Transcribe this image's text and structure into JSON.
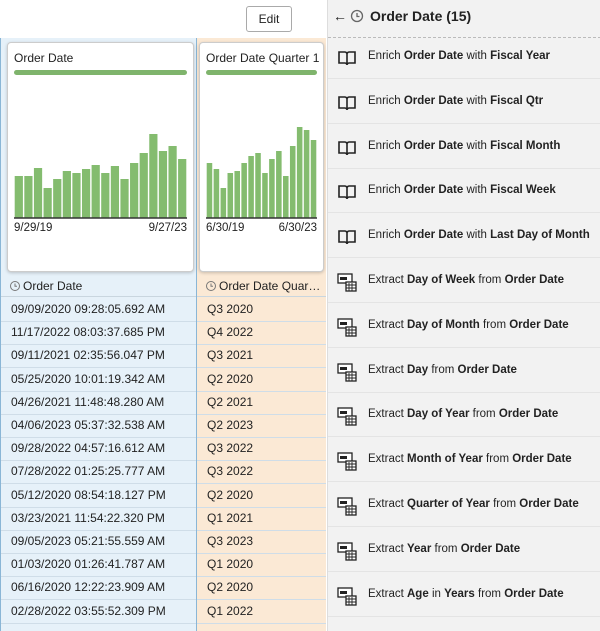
{
  "toolbar": {
    "edit_button": "Edit"
  },
  "profile_cards": [
    {
      "title": "Order Date",
      "histogram": [
        42,
        42,
        50,
        30,
        39,
        47,
        45,
        49,
        53,
        45,
        52,
        39,
        55,
        65,
        84,
        67,
        72,
        59
      ],
      "start_label": "9/29/19",
      "end_label": "9/27/23"
    },
    {
      "title": "Order Date Quarter 1",
      "histogram": [
        55,
        49,
        30,
        45,
        47,
        55,
        62,
        65,
        45,
        59,
        67,
        42,
        72,
        91,
        88,
        78
      ],
      "start_label": "6/30/19",
      "end_label": "6/30/23"
    }
  ],
  "table": {
    "columns": [
      "Order Date",
      "Order Date Quar…"
    ],
    "rows": [
      [
        "09/09/2020 09:28:05.692 AM",
        "Q3 2020"
      ],
      [
        "11/17/2022 08:03:37.685 PM",
        "Q4 2022"
      ],
      [
        "09/11/2021 02:35:56.047 PM",
        "Q3 2021"
      ],
      [
        "05/25/2020 10:01:19.342 AM",
        "Q2 2020"
      ],
      [
        "04/26/2021 11:48:48.280 AM",
        "Q2 2021"
      ],
      [
        "04/06/2023 05:37:32.538 AM",
        "Q2 2023"
      ],
      [
        "09/28/2022 04:57:16.612 AM",
        "Q3 2022"
      ],
      [
        "07/28/2022 01:25:25.777 AM",
        "Q3 2022"
      ],
      [
        "05/12/2020 08:54:18.127 PM",
        "Q2 2020"
      ],
      [
        "03/23/2021 11:54:22.320 PM",
        "Q1 2021"
      ],
      [
        "09/05/2023 05:21:55.559 AM",
        "Q3 2023"
      ],
      [
        "01/03/2020 01:26:41.787 AM",
        "Q1 2020"
      ],
      [
        "06/16/2020 12:22:23.909 AM",
        "Q2 2020"
      ],
      [
        "02/28/2022 03:55:52.309 PM",
        "Q1 2022"
      ]
    ]
  },
  "panel": {
    "back": "←",
    "title": "Order Date (15)",
    "items": [
      [
        "Enrich",
        "Order Date",
        "with",
        "Fiscal Year"
      ],
      [
        "Enrich",
        "Order Date",
        "with",
        "Fiscal Qtr"
      ],
      [
        "Enrich",
        "Order Date",
        "with",
        "Fiscal Month"
      ],
      [
        "Enrich",
        "Order Date",
        "with",
        "Fiscal Week"
      ],
      [
        "Enrich",
        "Order Date",
        "with",
        "Last Day of Month"
      ],
      [
        "Extract",
        "Day of Week",
        "from",
        "Order Date"
      ],
      [
        "Extract",
        "Day of Month",
        "from",
        "Order Date"
      ],
      [
        "Extract",
        "Day",
        "from",
        "Order Date"
      ],
      [
        "Extract",
        "Day of Year",
        "from",
        "Order Date"
      ],
      [
        "Extract",
        "Month of Year",
        "from",
        "Order Date"
      ],
      [
        "Extract",
        "Quarter of Year",
        "from",
        "Order Date"
      ],
      [
        "Extract",
        "Year",
        "from",
        "Order Date"
      ],
      [
        "Extract",
        "Age",
        "in",
        "Years",
        "from",
        "Order Date"
      ]
    ]
  }
}
